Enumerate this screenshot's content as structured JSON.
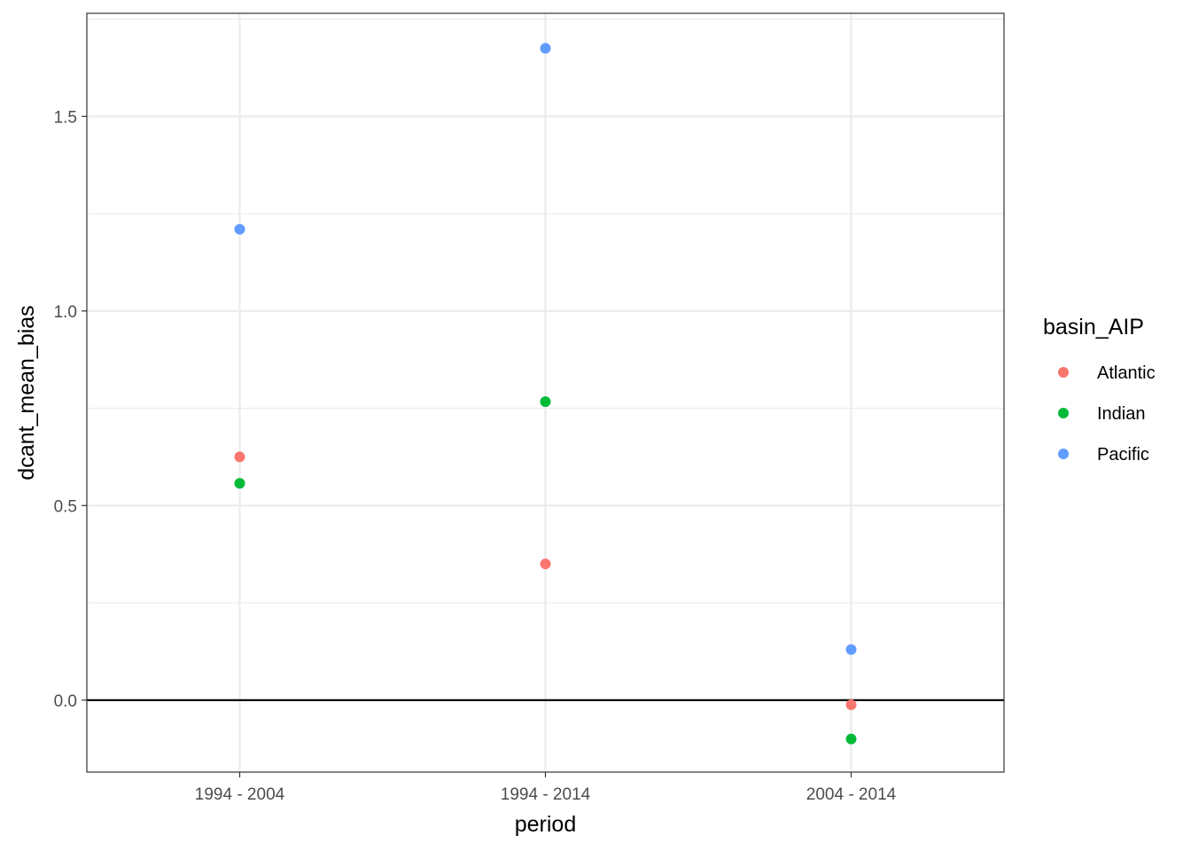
{
  "chart_data": {
    "type": "scatter",
    "xlabel": "period",
    "ylabel": "dcant_mean_bias",
    "categories": [
      "1994 - 2004",
      "1994 - 2014",
      "2004 - 2014"
    ],
    "ylim": [
      -0.185,
      1.765
    ],
    "yticks": [
      0.0,
      0.5,
      1.0,
      1.5
    ],
    "ytick_labels": [
      "0.0",
      "0.5",
      "1.0",
      "1.5"
    ],
    "hline": 0.0,
    "grid": true,
    "legend": {
      "title": "basin_AIP",
      "position": "right"
    },
    "series": [
      {
        "name": "Atlantic",
        "color": "#F8766D",
        "values": [
          0.625,
          0.35,
          -0.012
        ]
      },
      {
        "name": "Indian",
        "color": "#00BA38",
        "values": [
          0.557,
          0.767,
          -0.1
        ]
      },
      {
        "name": "Pacific",
        "color": "#619CFF",
        "values": [
          1.21,
          1.675,
          0.13
        ]
      }
    ]
  }
}
